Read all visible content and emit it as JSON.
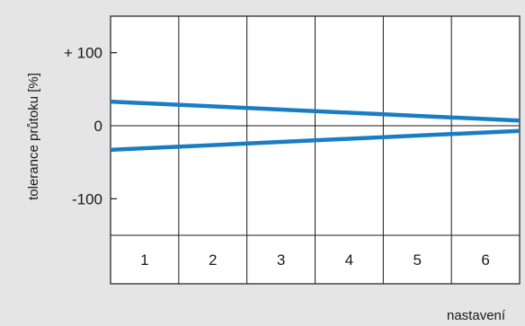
{
  "chart_data": {
    "type": "line",
    "xlabel": "nastavení",
    "ylabel": "tolerance průtoku [%]",
    "ylim": [
      -150,
      150
    ],
    "xlim": [
      0,
      6
    ],
    "y_ticks": [
      {
        "value": 100,
        "label": "+ 100"
      },
      {
        "value": 0,
        "label": "0"
      },
      {
        "value": -100,
        "label": "-100"
      }
    ],
    "categories": [
      "1",
      "2",
      "3",
      "4",
      "5",
      "6"
    ],
    "grid": true,
    "series": [
      {
        "x": [
          0,
          6
        ],
        "values": [
          33,
          7
        ]
      },
      {
        "x": [
          0,
          6
        ],
        "values": [
          -33,
          -7
        ]
      }
    ],
    "colors": {
      "series": "#1a7dc4",
      "grid": "#1a1a1a",
      "plot_bg": "#ffffff"
    }
  }
}
